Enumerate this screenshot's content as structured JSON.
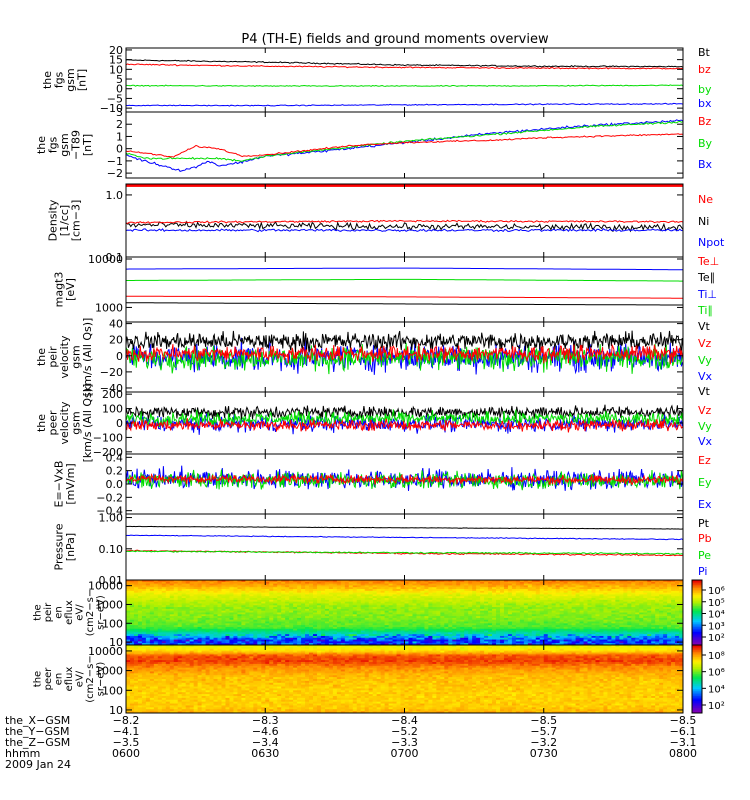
{
  "chart_data": {
    "title": "P4 (TH-E) fields and ground moments overview",
    "type": "line",
    "panels": [
      {
        "ylabel": [
          "the",
          "fgs",
          "gsm",
          "[nT]"
        ],
        "ylim": [
          -12,
          21
        ],
        "yticks": [
          20,
          15,
          10,
          5,
          0,
          -5,
          -10
        ],
        "ytick_labels": [
          "20",
          "15",
          "10",
          "5",
          "0",
          "−5",
          "−10"
        ],
        "legend": [
          {
            "name": "Bt",
            "color": "#000000"
          },
          {
            "name": "bz",
            "color": "#ff0000"
          },
          {
            "name": "by",
            "color": "#00dd00"
          },
          {
            "name": "bx",
            "color": "#0000ff"
          }
        ],
        "series": [
          {
            "name": "Bt",
            "color": "#000000",
            "noise": 0.25,
            "x": [
              0,
              30,
              60,
              90,
              120
            ],
            "values": [
              14.8,
              13.7,
              12.2,
              11.6,
              11.4
            ]
          },
          {
            "name": "bz",
            "color": "#ff0000",
            "noise": 0.25,
            "x": [
              0,
              30,
              60,
              90,
              120
            ],
            "values": [
              12.6,
              11.6,
              11.0,
              10.6,
              10.4
            ]
          },
          {
            "name": "by",
            "color": "#00dd00",
            "noise": 0.2,
            "x": [
              0,
              30,
              60,
              90,
              120
            ],
            "values": [
              1.6,
              1.4,
              1.4,
              1.5,
              1.8
            ]
          },
          {
            "name": "bx",
            "color": "#0000ff",
            "noise": 0.2,
            "x": [
              0,
              30,
              60,
              90,
              120
            ],
            "values": [
              -8.6,
              -8.7,
              -8.3,
              -8.0,
              -7.8
            ]
          }
        ]
      },
      {
        "ylabel": [
          "the",
          "fgs",
          "gsm",
          "−T89",
          "[nT]"
        ],
        "ylim": [
          -2.4,
          3.0
        ],
        "yticks": [
          3,
          2,
          1,
          0,
          -1,
          -2
        ],
        "ytick_labels": [
          "3",
          "2",
          "1",
          "0",
          "−1",
          "−2"
        ],
        "legend": [
          {
            "name": "Bz",
            "color": "#ff0000"
          },
          {
            "name": "By",
            "color": "#00dd00"
          },
          {
            "name": "Bx",
            "color": "#0000ff"
          }
        ],
        "series": [
          {
            "name": "Bx",
            "color": "#0000ff",
            "noise": 0.08,
            "x": [
              0,
              3,
              8,
              12,
              15,
              18,
              20,
              25,
              30,
              40,
              50,
              60,
              70,
              80,
              90,
              100,
              110,
              120
            ],
            "values": [
              -0.5,
              -0.9,
              -1.4,
              -1.8,
              -1.5,
              -1.0,
              -1.4,
              -1.1,
              -0.6,
              -0.3,
              0.1,
              0.5,
              0.9,
              1.3,
              1.6,
              1.9,
              2.1,
              2.3
            ]
          },
          {
            "name": "By",
            "color": "#00dd00",
            "noise": 0.06,
            "x": [
              0,
              5,
              10,
              20,
              25,
              30,
              40,
              50,
              60,
              70,
              80,
              90,
              100,
              110,
              120
            ],
            "values": [
              -0.4,
              -0.8,
              -0.8,
              -0.8,
              -1.0,
              -0.6,
              -0.2,
              0.2,
              0.6,
              0.9,
              1.2,
              1.5,
              1.8,
              2.0,
              2.2
            ]
          },
          {
            "name": "Bz",
            "color": "#ff0000",
            "noise": 0.05,
            "x": [
              0,
              5,
              10,
              15,
              20,
              25,
              30,
              40,
              50,
              60,
              70,
              80,
              90,
              100,
              110,
              120
            ],
            "values": [
              -0.2,
              -0.4,
              -0.7,
              0.2,
              0.0,
              -0.6,
              -0.5,
              -0.1,
              0.3,
              0.5,
              0.6,
              0.7,
              0.9,
              1.0,
              1.1,
              1.2
            ]
          }
        ]
      },
      {
        "ylabel": [
          "Density",
          "[1/cc]",
          "[cm−3]"
        ],
        "log": true,
        "ylim": [
          0.1,
          1.5
        ],
        "yticks": [
          1.0,
          0.1
        ],
        "ytick_labels": [
          "1.0",
          "0.1"
        ],
        "legend": [
          {
            "name": "Ne",
            "color": "#ff0000"
          },
          {
            "name": "Ni",
            "color": "#000000"
          },
          {
            "name": "Npot",
            "color": "#0000ff"
          }
        ],
        "series": [
          {
            "name": "Ni",
            "color": "#000000",
            "noise": 0.03,
            "x": [
              0,
              60,
              120
            ],
            "values": [
              0.33,
              0.31,
              0.3
            ]
          },
          {
            "name": "Ne",
            "color": "#ff0000",
            "noise": 0.01,
            "x": [
              0,
              60,
              120
            ],
            "values": [
              0.36,
              0.38,
              0.37
            ]
          },
          {
            "name": "Npot",
            "color": "#0000ff",
            "noise": 0.01,
            "x": [
              0,
              60,
              120
            ],
            "values": [
              0.27,
              0.27,
              0.27
            ]
          }
        ],
        "band": {
          "color": "#ff0000",
          "value": 1.4
        }
      },
      {
        "ylabel": [
          "magt3",
          "[eV]"
        ],
        "log": true,
        "ylim": [
          500,
          11000
        ],
        "yticks": [
          10000,
          1000
        ],
        "ytick_labels": [
          "10000",
          "1000"
        ],
        "legend": [
          {
            "name": "Te⊥",
            "color": "#ff0000"
          },
          {
            "name": "Te∥",
            "color": "#000000"
          },
          {
            "name": "Ti⊥",
            "color": "#0000ff"
          },
          {
            "name": "Ti∥",
            "color": "#00dd00"
          }
        ],
        "series": [
          {
            "name": "Ti⊥",
            "color": "#0000ff",
            "noise": 0.03,
            "x": [
              0,
              60,
              120
            ],
            "values": [
              6200,
              6500,
              6000
            ]
          },
          {
            "name": "Ti∥",
            "color": "#00dd00",
            "noise": 0.03,
            "x": [
              0,
              60,
              120
            ],
            "values": [
              3600,
              3800,
              3500
            ]
          },
          {
            "name": "Te⊥",
            "color": "#ff0000",
            "noise": 0.02,
            "x": [
              0,
              60,
              120
            ],
            "values": [
              1700,
              1650,
              1550
            ]
          },
          {
            "name": "Te∥",
            "color": "#000000",
            "noise": 0.02,
            "x": [
              0,
              60,
              120
            ],
            "values": [
              1250,
              1180,
              1120
            ]
          }
        ]
      },
      {
        "ylabel": [
          "the",
          "peir",
          "velocity",
          "gsm",
          "[km/s (All Qs)]"
        ],
        "ylim": [
          -45,
          42
        ],
        "yticks": [
          40,
          20,
          0,
          -20,
          -40
        ],
        "ytick_labels": [
          "40",
          "20",
          "0",
          "−20",
          "−40"
        ],
        "legend": [
          {
            "name": "Vt",
            "color": "#000000"
          },
          {
            "name": "Vz",
            "color": "#ff0000"
          },
          {
            "name": "Vy",
            "color": "#00dd00"
          },
          {
            "name": "Vx",
            "color": "#0000ff"
          }
        ],
        "series": [
          {
            "name": "Vx",
            "color": "#0000ff",
            "noise": 14,
            "x": [
              0,
              120
            ],
            "values": [
              -2,
              -2
            ]
          },
          {
            "name": "Vy",
            "color": "#00dd00",
            "noise": 12,
            "x": [
              0,
              120
            ],
            "values": [
              -3,
              -3
            ]
          },
          {
            "name": "Vt",
            "color": "#000000",
            "noise": 9,
            "x": [
              0,
              120
            ],
            "values": [
              18,
              18
            ]
          },
          {
            "name": "Vz",
            "color": "#ff0000",
            "noise": 8,
            "x": [
              0,
              120
            ],
            "values": [
              3,
              3
            ]
          }
        ]
      },
      {
        "ylabel": [
          "the",
          "peer",
          "velocity",
          "gsm",
          "[km/s (All Qs)]"
        ],
        "ylim": [
          -215,
          215
        ],
        "yticks": [
          200,
          100,
          0,
          -100,
          -200
        ],
        "ytick_labels": [
          "200",
          "100",
          "0",
          "−100",
          "−200"
        ],
        "legend": [
          {
            "name": "Vt",
            "color": "#000000"
          },
          {
            "name": "Vz",
            "color": "#ff0000"
          },
          {
            "name": "Vy",
            "color": "#00dd00"
          },
          {
            "name": "Vx",
            "color": "#0000ff"
          }
        ],
        "series": [
          {
            "name": "Vx",
            "color": "#0000ff",
            "noise": 45,
            "x": [
              0,
              120
            ],
            "values": [
              -5,
              -5
            ]
          },
          {
            "name": "Vt",
            "color": "#000000",
            "noise": 35,
            "x": [
              0,
              120
            ],
            "values": [
              75,
              75
            ]
          },
          {
            "name": "Vy",
            "color": "#00dd00",
            "noise": 38,
            "x": [
              0,
              120
            ],
            "values": [
              30,
              30
            ]
          },
          {
            "name": "Vz",
            "color": "#ff0000",
            "noise": 30,
            "x": [
              0,
              120
            ],
            "values": [
              -15,
              -15
            ]
          }
        ]
      },
      {
        "ylabel": [
          "E=−VxB",
          "[mV/m]"
        ],
        "ylim": [
          -0.45,
          0.45
        ],
        "yticks": [
          0.4,
          0.2,
          0.0,
          -0.2,
          -0.4
        ],
        "ytick_labels": [
          "0.4",
          "0.2",
          "0.0",
          "−0.2",
          "−0.4"
        ],
        "legend": [
          {
            "name": "Ez",
            "color": "#ff0000"
          },
          {
            "name": "Ey",
            "color": "#00dd00"
          },
          {
            "name": "Ex",
            "color": "#0000ff"
          }
        ],
        "series": [
          {
            "name": "Ex",
            "color": "#0000ff",
            "noise": 0.12,
            "x": [
              0,
              120
            ],
            "values": [
              0.08,
              0.06
            ]
          },
          {
            "name": "Ey",
            "color": "#00dd00",
            "noise": 0.1,
            "x": [
              0,
              120
            ],
            "values": [
              0.06,
              0.05
            ]
          },
          {
            "name": "Ez",
            "color": "#ff0000",
            "noise": 0.05,
            "x": [
              0,
              120
            ],
            "values": [
              0.08,
              0.06
            ]
          }
        ]
      },
      {
        "ylabel": [
          "Pressure",
          "[nPa]"
        ],
        "log": true,
        "ylim": [
          0.01,
          1.3
        ],
        "yticks": [
          1.0,
          0.1,
          0.01
        ],
        "ytick_labels": [
          "1.00",
          "0.10",
          "0.01"
        ],
        "legend": [
          {
            "name": "Pt",
            "color": "#000000"
          },
          {
            "name": "Pb",
            "color": "#ff0000"
          },
          {
            "name": "Pe",
            "color": "#00dd00"
          },
          {
            "name": "Pi",
            "color": "#0000ff"
          }
        ],
        "series": [
          {
            "name": "Pt",
            "color": "#000000",
            "noise": 0.005,
            "x": [
              0,
              60,
              120
            ],
            "values": [
              0.52,
              0.47,
              0.43
            ]
          },
          {
            "name": "Pi",
            "color": "#0000ff",
            "noise": 0.005,
            "x": [
              0,
              60,
              120
            ],
            "values": [
              0.27,
              0.23,
              0.2
            ]
          },
          {
            "name": "Pb",
            "color": "#ff0000",
            "noise": 0.003,
            "x": [
              0,
              60,
              120
            ],
            "values": [
              0.087,
              0.071,
              0.062
            ]
          },
          {
            "name": "Pe",
            "color": "#00dd00",
            "noise": 0.003,
            "x": [
              0,
              60,
              120
            ],
            "values": [
              0.083,
              0.075,
              0.07
            ]
          }
        ]
      },
      {
        "ylabel": [
          "the",
          "peir",
          "en",
          "eflux",
          "eV/",
          "(cm2−s−",
          "sr−eV)"
        ],
        "type": "heatmap",
        "log": true,
        "ylim": [
          7,
          20000
        ],
        "yticks": [
          10000,
          1000,
          100,
          10
        ],
        "ytick_labels": [
          "10000",
          "1000",
          "100",
          "10"
        ],
        "colorbar_ticks": [
          "10⁶",
          "10⁵",
          "10⁴",
          "10³",
          "10²"
        ],
        "profile": [
          {
            "e": 7,
            "level": 0.25
          },
          {
            "e": 12,
            "level": 0.22
          },
          {
            "e": 25,
            "level": 0.4
          },
          {
            "e": 60,
            "level": 0.58
          },
          {
            "e": 200,
            "level": 0.62
          },
          {
            "e": 800,
            "level": 0.64
          },
          {
            "e": 3000,
            "level": 0.72
          },
          {
            "e": 8000,
            "level": 0.82
          },
          {
            "e": 15000,
            "level": 0.88
          },
          {
            "e": 20000,
            "level": 0.9
          }
        ]
      },
      {
        "ylabel": [
          "the",
          "peer",
          "en",
          "eflux",
          "eV/",
          "(cm2−s−",
          "sr−eV)"
        ],
        "type": "heatmap",
        "log": true,
        "ylim": [
          7,
          20000
        ],
        "yticks": [
          10000,
          1000,
          100,
          10
        ],
        "ytick_labels": [
          "10000",
          "1000",
          "100",
          "10"
        ],
        "colorbar_ticks": [
          "10⁸",
          "10⁶",
          "10⁴",
          "10²"
        ],
        "profile": [
          {
            "e": 7,
            "level": 0.84
          },
          {
            "e": 15,
            "level": 0.8
          },
          {
            "e": 100,
            "level": 0.8
          },
          {
            "e": 500,
            "level": 0.82
          },
          {
            "e": 1500,
            "level": 0.88
          },
          {
            "e": 3000,
            "level": 0.95
          },
          {
            "e": 6000,
            "level": 0.92
          },
          {
            "e": 10000,
            "level": 0.78
          },
          {
            "e": 20000,
            "level": 0.72
          }
        ]
      }
    ],
    "xlim": [
      0,
      120
    ],
    "xticks": [
      0,
      30,
      60,
      90,
      120
    ],
    "footer": {
      "rows": [
        {
          "label": "the_X−GSM",
          "values": [
            "−8.2",
            "−8.3",
            "−8.4",
            "−8.5",
            "−8.5"
          ]
        },
        {
          "label": "the_Y−GSM",
          "values": [
            "−4.1",
            "−4.6",
            "−5.2",
            "−5.7",
            "−6.1"
          ]
        },
        {
          "label": "the_Z−GSM",
          "values": [
            "−3.5",
            "−3.4",
            "−3.3",
            "−3.2",
            "−3.1"
          ]
        },
        {
          "label": "hhmm",
          "values": [
            "0600",
            "0630",
            "0700",
            "0730",
            "0800"
          ]
        }
      ],
      "date": "2009 Jan 24"
    }
  }
}
